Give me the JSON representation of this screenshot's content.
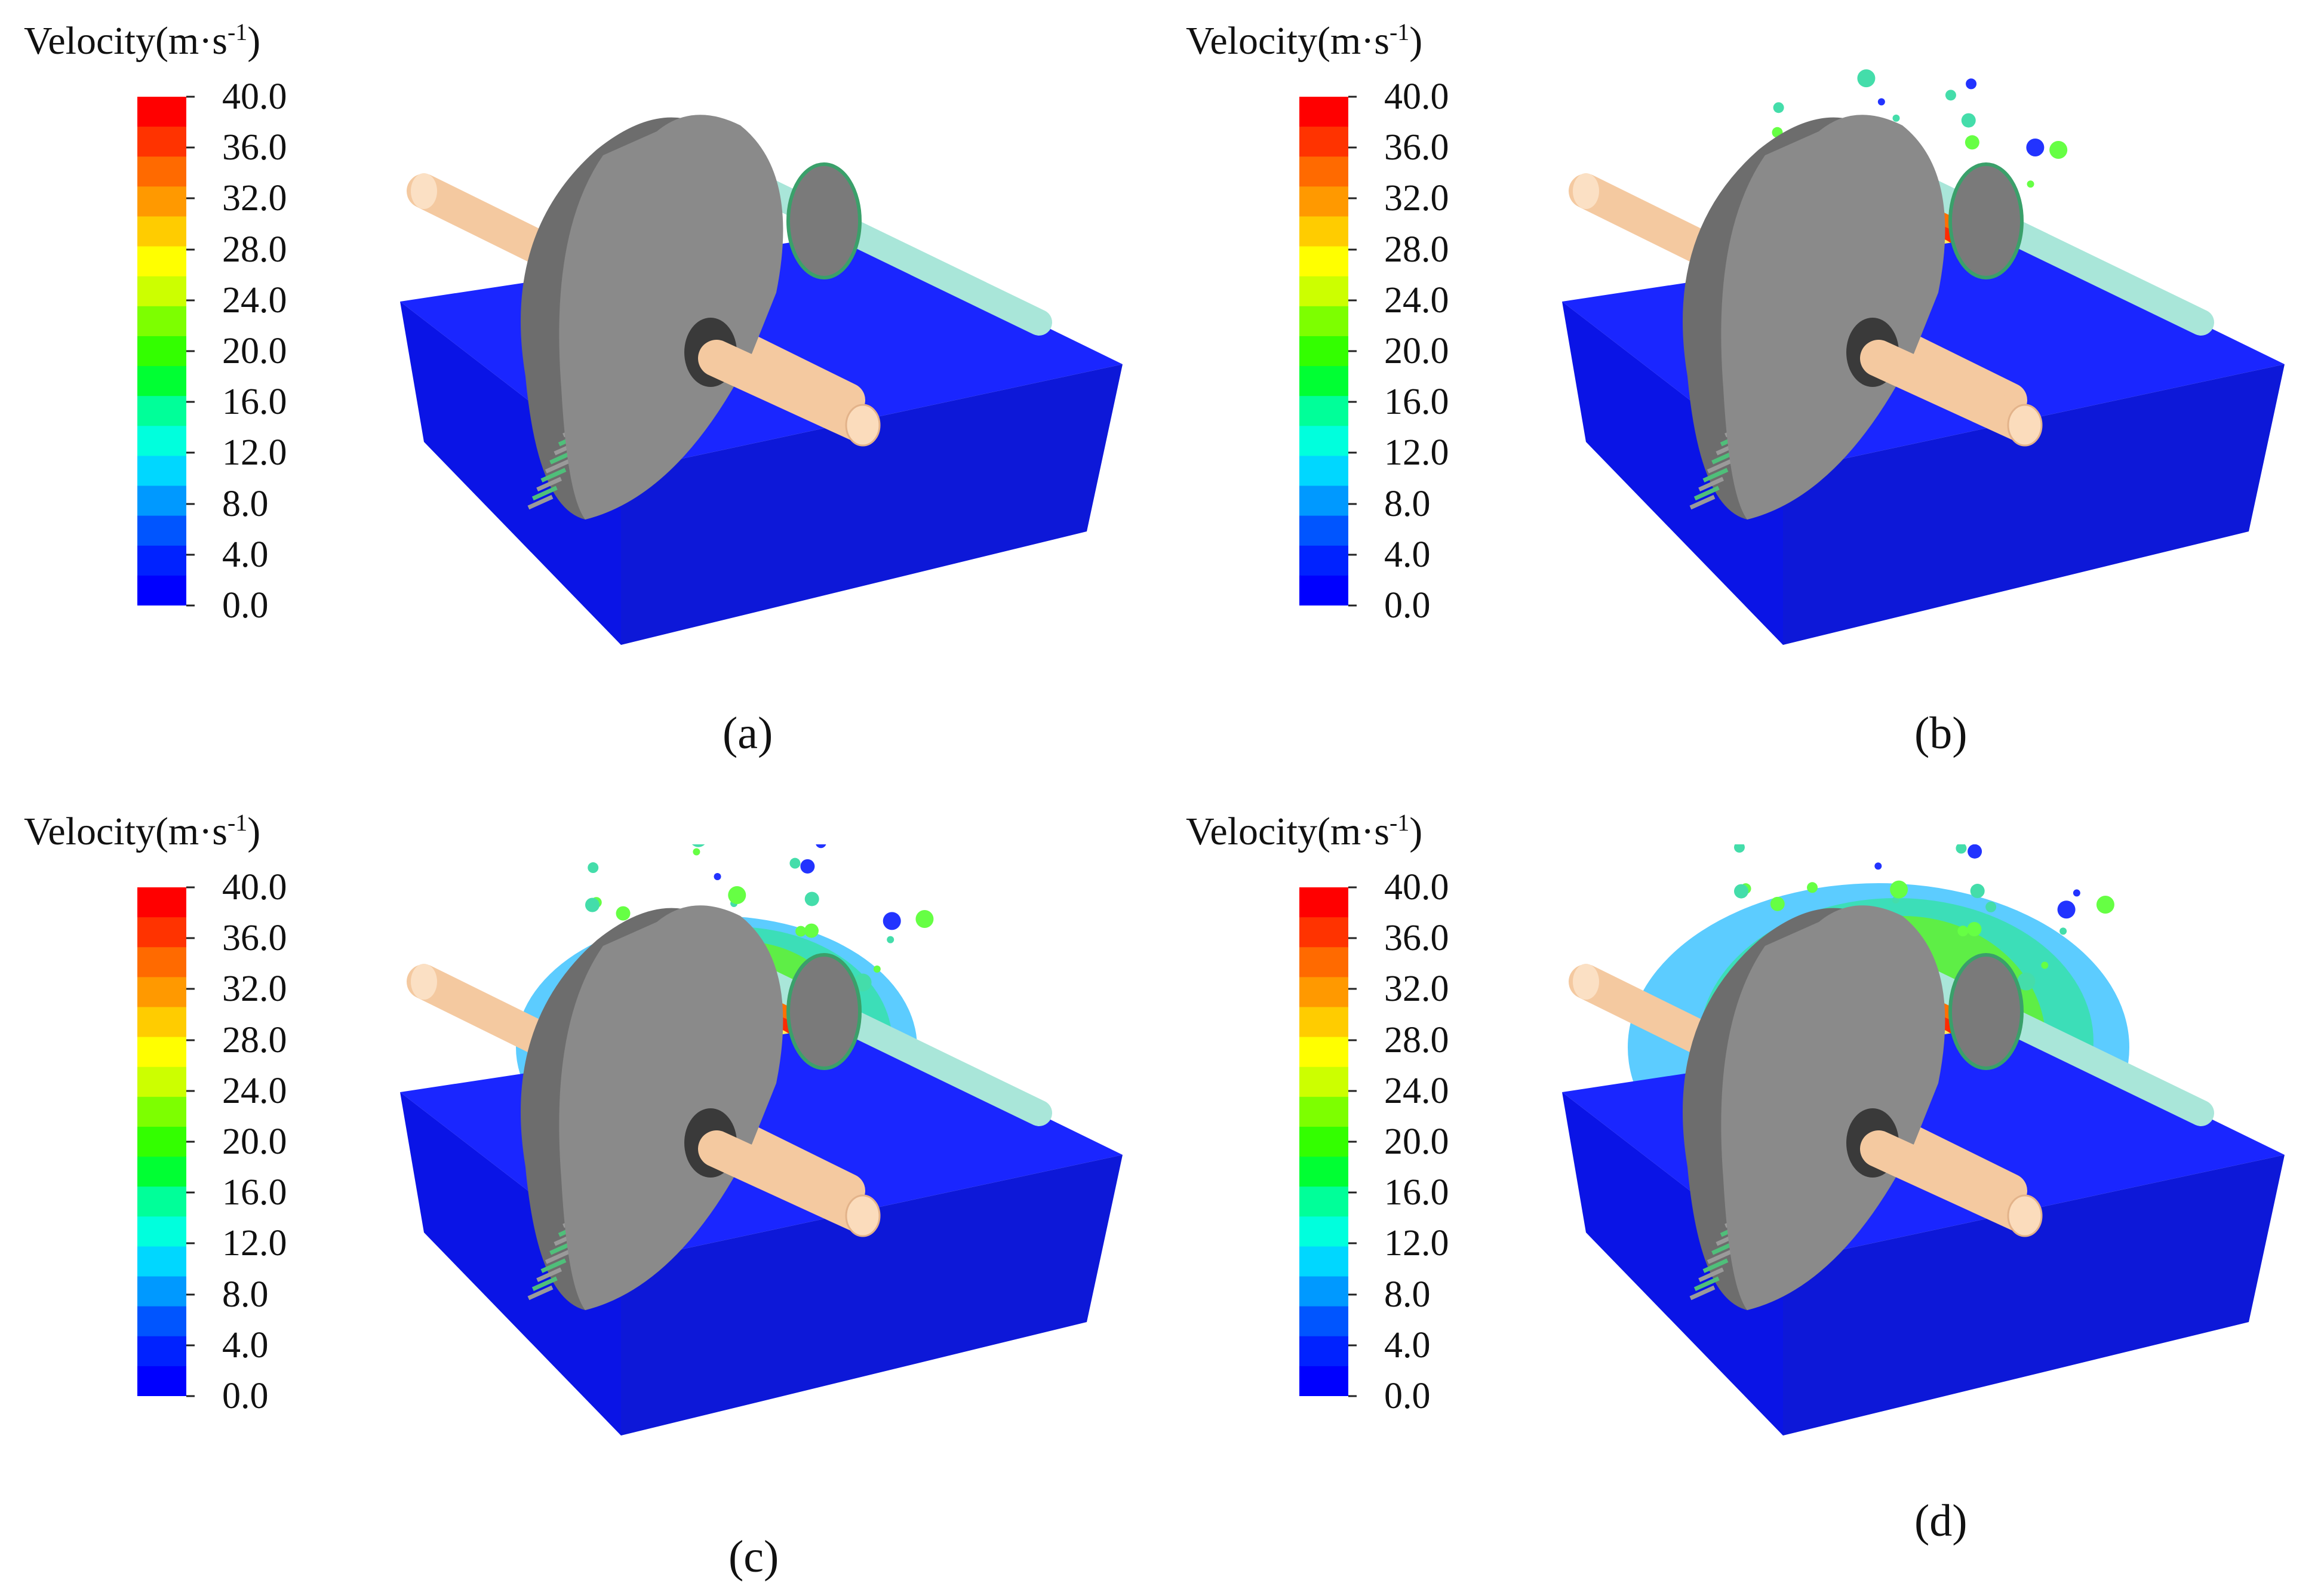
{
  "legend": {
    "title": "Velocity(m·s",
    "title_sup": "-1",
    "title_close": ")",
    "ticks": [
      "40.0",
      "36.0",
      "32.0",
      "28.0",
      "24.0",
      "20.0",
      "16.0",
      "12.0",
      "8.0",
      "4.0",
      "0.0"
    ],
    "colors": [
      "#ff0000",
      "#ff3300",
      "#ff6a00",
      "#ff9900",
      "#ffcc00",
      "#ffff00",
      "#ccff00",
      "#7dff00",
      "#33ff00",
      "#00ff33",
      "#00ff99",
      "#00ffdd",
      "#00d7ff",
      "#0099ff",
      "#0055ff",
      "#0022ff",
      "#0000ff"
    ]
  },
  "panels": [
    {
      "id": "a",
      "caption": "(a)",
      "splash_level": 0.15
    },
    {
      "id": "b",
      "caption": "(b)",
      "splash_level": 0.5
    },
    {
      "id": "c",
      "caption": "(c)",
      "splash_level": 0.8
    },
    {
      "id": "d",
      "caption": "(d)",
      "splash_level": 1.0
    }
  ],
  "colors": {
    "tank": "#0a14e6",
    "tank_top": "#1a26ff",
    "gear": "#8a8a8a",
    "gear_dark": "#6d6d6d",
    "shaft": "#f4c9a0",
    "shaft_back": "#a9e6d9",
    "tooth": "#4fbf7a"
  }
}
